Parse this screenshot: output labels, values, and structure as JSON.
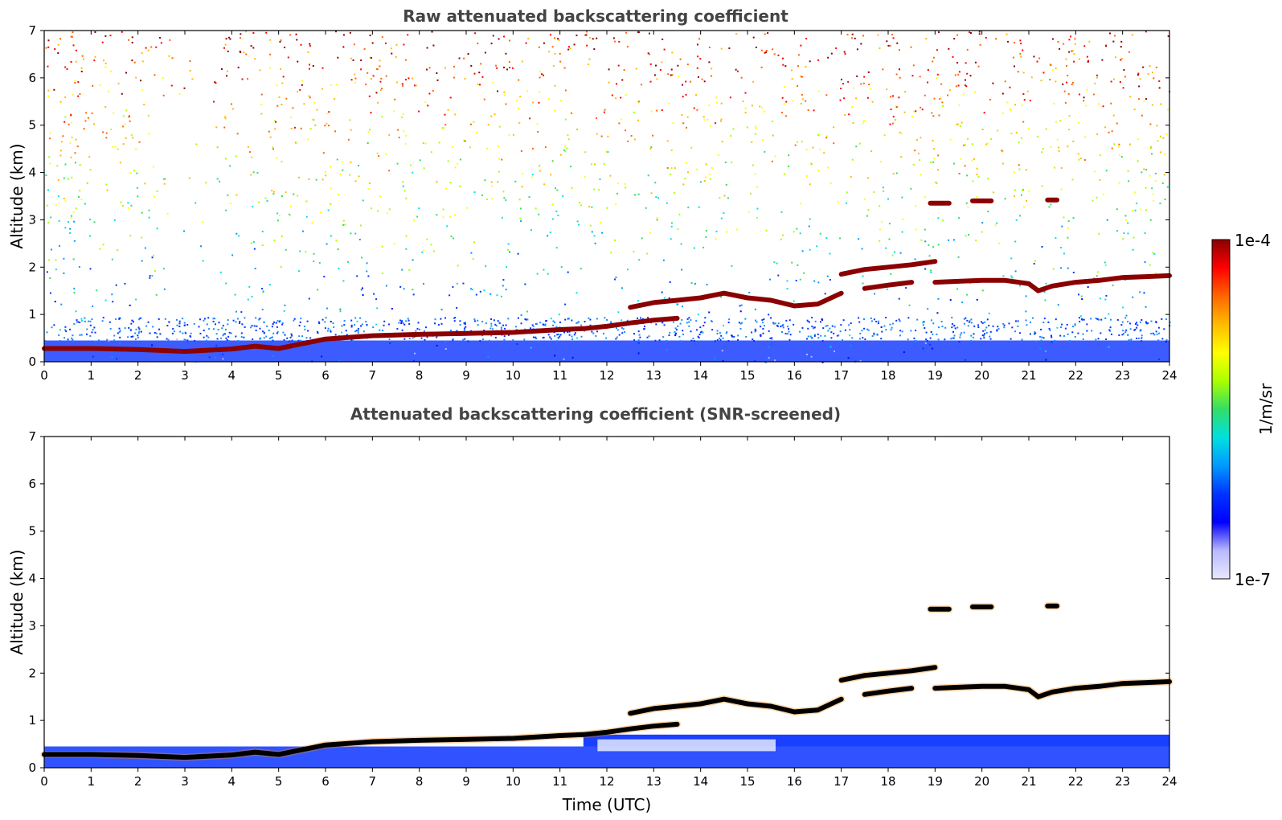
{
  "colors": {
    "title": "#444444",
    "layer_strong": "#8b0000",
    "layer_core_screened": "#000000",
    "near_surface": "#1a3cff",
    "background": "#ffffff"
  },
  "colorbar": {
    "label": "1/m/sr",
    "max_label": "1e-4",
    "min_label": "1e-7",
    "scale": "log",
    "stops": [
      "#e8e8ff",
      "#b8b8ff",
      "#0000ff",
      "#0033ff",
      "#0099ff",
      "#00e0e0",
      "#33dd66",
      "#aaff00",
      "#ffff00",
      "#ffbb00",
      "#ff6600",
      "#ff0000",
      "#8b0000"
    ]
  },
  "chart_data": [
    {
      "type": "heatmap",
      "title": "Raw attenuated backscattering coefficient",
      "xlabel": "",
      "ylabel": "Altitude (km)",
      "xlim": [
        0,
        24
      ],
      "ylim": [
        0,
        7
      ],
      "xticks": [
        "0",
        "1",
        "2",
        "3",
        "4",
        "5",
        "6",
        "7",
        "8",
        "9",
        "10",
        "11",
        "12",
        "13",
        "14",
        "15",
        "16",
        "17",
        "18",
        "19",
        "20",
        "21",
        "22",
        "23",
        "24"
      ],
      "yticks": [
        "0",
        "1",
        "2",
        "3",
        "4",
        "5",
        "6",
        "7"
      ],
      "grid": false,
      "screened": false,
      "layers": [
        {
          "name": "boundary_layer_top",
          "x": [
            0,
            1,
            2,
            3,
            4,
            4.5,
            5,
            5.5,
            6,
            7,
            8,
            9,
            10,
            11,
            11.5,
            12,
            12.5,
            13,
            13.5
          ],
          "y": [
            0.28,
            0.28,
            0.26,
            0.22,
            0.27,
            0.33,
            0.28,
            0.38,
            0.48,
            0.55,
            0.58,
            0.6,
            0.62,
            0.68,
            0.7,
            0.75,
            0.82,
            0.88,
            0.92
          ]
        },
        {
          "name": "cloud_1",
          "x": [
            12.5,
            13,
            13.5,
            14,
            14.5,
            15,
            15.5,
            16,
            16.5,
            17
          ],
          "y": [
            1.15,
            1.25,
            1.3,
            1.35,
            1.45,
            1.35,
            1.3,
            1.18,
            1.22,
            1.45
          ]
        },
        {
          "name": "cloud_2",
          "x": [
            17,
            17.5,
            18,
            18.5,
            19
          ],
          "y": [
            1.85,
            1.95,
            2.0,
            2.05,
            2.12
          ]
        },
        {
          "name": "cloud_3",
          "x": [
            17.5,
            18,
            18.5
          ],
          "y": [
            1.55,
            1.62,
            1.68
          ]
        },
        {
          "name": "cloud_4",
          "x": [
            19,
            19.5,
            20,
            20.5,
            21,
            21.2,
            21.5,
            22,
            22.5,
            23,
            23.5,
            24
          ],
          "y": [
            1.68,
            1.7,
            1.72,
            1.72,
            1.65,
            1.5,
            1.6,
            1.68,
            1.72,
            1.78,
            1.8,
            1.82
          ]
        },
        {
          "name": "cloud_5",
          "x": [
            18.9,
            19.3
          ],
          "y": [
            3.35,
            3.35
          ]
        },
        {
          "name": "cloud_6",
          "x": [
            19.8,
            20.2
          ],
          "y": [
            3.4,
            3.4
          ]
        },
        {
          "name": "cloud_7",
          "x": [
            21.4,
            21.6
          ],
          "y": [
            3.42,
            3.42
          ]
        }
      ]
    },
    {
      "type": "heatmap",
      "title": "Attenuated backscattering coefficient (SNR-screened)",
      "xlabel": "Time (UTC)",
      "ylabel": "Altitude (km)",
      "xlim": [
        0,
        24
      ],
      "ylim": [
        0,
        7
      ],
      "xticks": [
        "0",
        "1",
        "2",
        "3",
        "4",
        "5",
        "6",
        "7",
        "8",
        "9",
        "10",
        "11",
        "12",
        "13",
        "14",
        "15",
        "16",
        "17",
        "18",
        "19",
        "20",
        "21",
        "22",
        "23",
        "24"
      ],
      "yticks": [
        "0",
        "1",
        "2",
        "3",
        "4",
        "5",
        "6",
        "7"
      ],
      "grid": false,
      "screened": true
    }
  ]
}
